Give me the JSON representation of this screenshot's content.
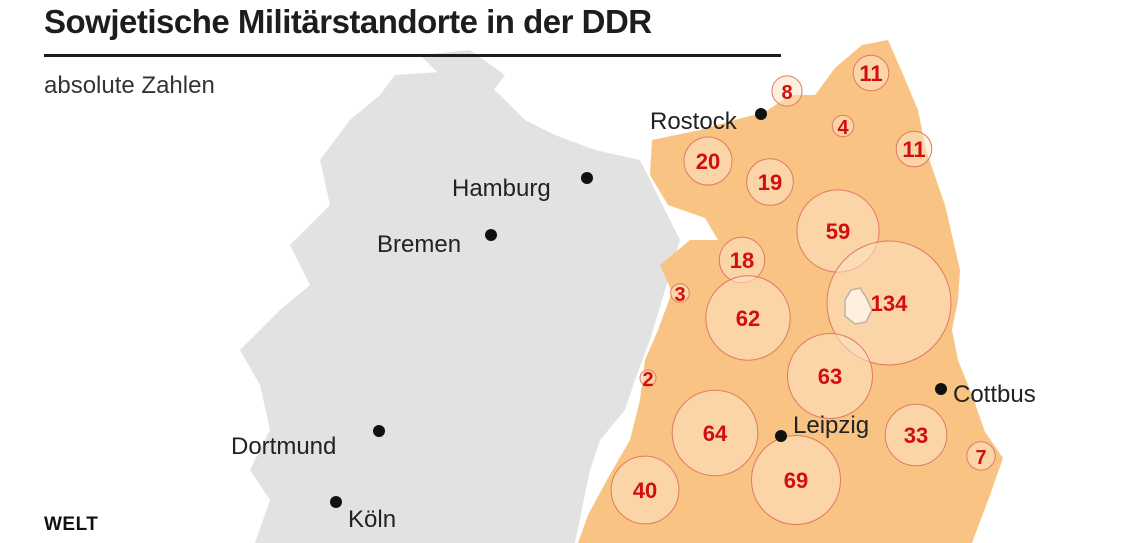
{
  "header": {
    "title": "Sowjetische Militärstandorte in der DDR",
    "subtitle": "absolute Zahlen"
  },
  "brand": "WELT",
  "colors": {
    "land_west": "#e2e2e2",
    "ddr_fill": "#f9c383",
    "bubble_fill": "#fde2c4",
    "bubble_stroke": "#e07a62",
    "label_red": "#d10f0f",
    "city_dot": "#111111"
  },
  "cities": [
    {
      "name": "Rostock"
    },
    {
      "name": "Hamburg"
    },
    {
      "name": "Bremen"
    },
    {
      "name": "Leipzig"
    },
    {
      "name": "Cottbus"
    },
    {
      "name": "Dortmund"
    },
    {
      "name": "Köln"
    }
  ],
  "sites": [
    {
      "value": 11
    },
    {
      "value": 8
    },
    {
      "value": 4
    },
    {
      "value": 11
    },
    {
      "value": 20
    },
    {
      "value": 19
    },
    {
      "value": 59
    },
    {
      "value": 18
    },
    {
      "value": 3
    },
    {
      "value": 62
    },
    {
      "value": 134
    },
    {
      "value": 2
    },
    {
      "value": 63
    },
    {
      "value": 64
    },
    {
      "value": 69
    },
    {
      "value": 33
    },
    {
      "value": 7
    },
    {
      "value": 40
    }
  ]
}
